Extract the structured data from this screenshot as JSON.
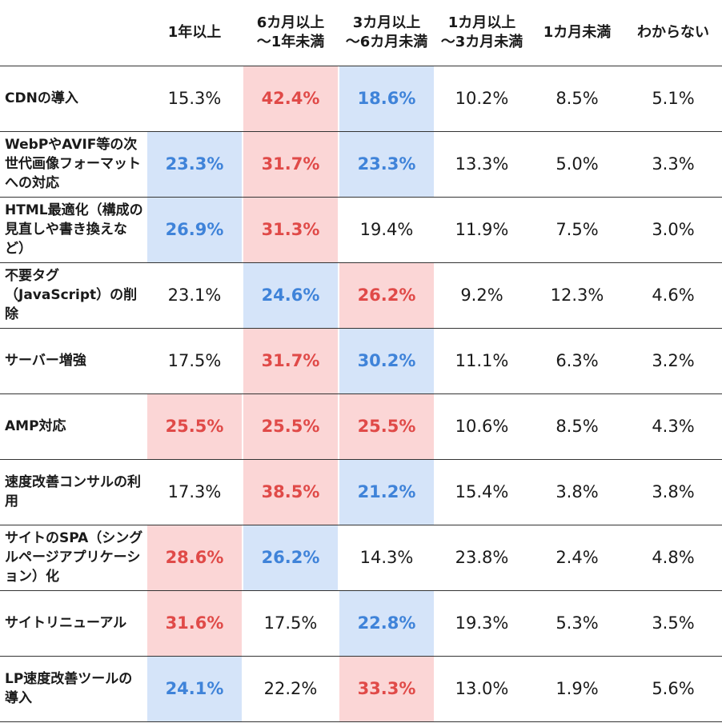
{
  "chart_data": {
    "type": "table",
    "columns": [
      "1年以上",
      "6カ月以上\n～1年未満",
      "3カ月以上\n～6カ月未満",
      "1カ月以上\n～3カ月未満",
      "1カ月未満",
      "わからない"
    ],
    "rows": [
      {
        "label": "CDNの導入",
        "values": [
          "15.3%",
          "42.4%",
          "18.6%",
          "10.2%",
          "8.5%",
          "5.1%"
        ],
        "highlight": [
          "",
          "red",
          "blue",
          "",
          "",
          ""
        ]
      },
      {
        "label": "WebPやAVIF等の次世代画像フォーマットへの対応",
        "values": [
          "23.3%",
          "31.7%",
          "23.3%",
          "13.3%",
          "5.0%",
          "3.3%"
        ],
        "highlight": [
          "blue",
          "red",
          "blue",
          "",
          "",
          ""
        ]
      },
      {
        "label": "HTML最適化（構成の見直しや書き換えなど）",
        "values": [
          "26.9%",
          "31.3%",
          "19.4%",
          "11.9%",
          "7.5%",
          "3.0%"
        ],
        "highlight": [
          "blue",
          "red",
          "",
          "",
          "",
          ""
        ]
      },
      {
        "label": "不要タグ（JavaScript）の削除",
        "values": [
          "23.1%",
          "24.6%",
          "26.2%",
          "9.2%",
          "12.3%",
          "4.6%"
        ],
        "highlight": [
          "",
          "blue",
          "red",
          "",
          "",
          ""
        ]
      },
      {
        "label": "サーバー増強",
        "values": [
          "17.5%",
          "31.7%",
          "30.2%",
          "11.1%",
          "6.3%",
          "3.2%"
        ],
        "highlight": [
          "",
          "red",
          "blue",
          "",
          "",
          ""
        ]
      },
      {
        "label": "AMP対応",
        "values": [
          "25.5%",
          "25.5%",
          "25.5%",
          "10.6%",
          "8.5%",
          "4.3%"
        ],
        "highlight": [
          "red",
          "red",
          "red",
          "",
          "",
          ""
        ]
      },
      {
        "label": "速度改善コンサルの利用",
        "values": [
          "17.3%",
          "38.5%",
          "21.2%",
          "15.4%",
          "3.8%",
          "3.8%"
        ],
        "highlight": [
          "",
          "red",
          "blue",
          "",
          "",
          ""
        ]
      },
      {
        "label": "サイトのSPA（シングルページアプリケーション）化",
        "values": [
          "28.6%",
          "26.2%",
          "14.3%",
          "23.8%",
          "2.4%",
          "4.8%"
        ],
        "highlight": [
          "red",
          "blue",
          "",
          "",
          "",
          ""
        ]
      },
      {
        "label": "サイトリニューアル",
        "values": [
          "31.6%",
          "17.5%",
          "22.8%",
          "19.3%",
          "5.3%",
          "3.5%"
        ],
        "highlight": [
          "red",
          "",
          "blue",
          "",
          "",
          ""
        ]
      },
      {
        "label": "LP速度改善ツールの導入",
        "values": [
          "24.1%",
          "22.2%",
          "33.3%",
          "13.0%",
          "1.9%",
          "5.6%"
        ],
        "highlight": [
          "blue",
          "",
          "red",
          "",
          "",
          ""
        ]
      }
    ],
    "colors": {
      "red_highlight": "#fbd6d6",
      "red_text": "#e04a48",
      "blue_highlight": "#d5e4f9",
      "blue_text": "#3f83d9"
    }
  }
}
